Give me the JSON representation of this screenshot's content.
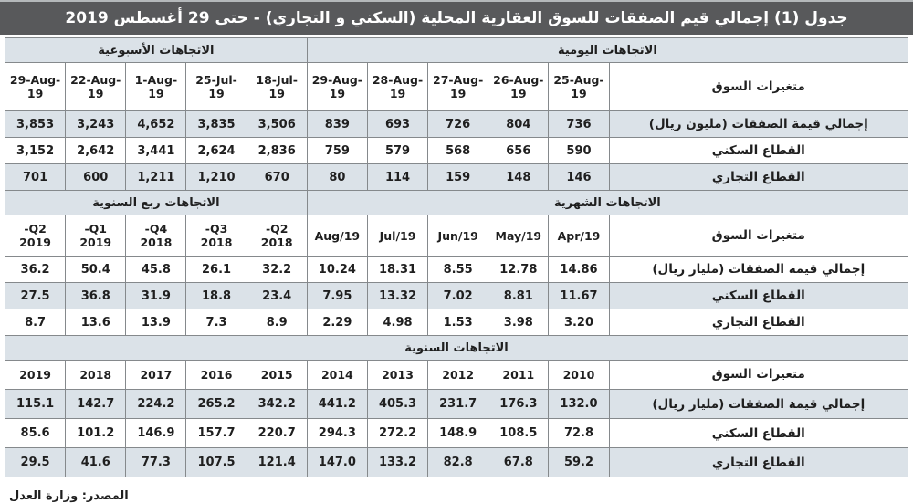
{
  "page": {
    "title": "جدول (1) إجمالي قيم الصفقات للسوق العقارية المحلية (السكني و التجاري) - حتى 29 أغسطس 2019",
    "source_note": "المصدر: وزارة العدل"
  },
  "colors": {
    "title_bar_bg": "#58595b",
    "title_text": "#ffffff",
    "band_bg": "#dbe2e8",
    "shaded_row_bg": "#dbe2e8",
    "row_bg": "#ffffff",
    "border": "#85898c",
    "text": "#1f1f1f"
  },
  "table": {
    "variables_label": "متغيرات السوق",
    "sections": [
      {
        "group_headers": [
          {
            "label": "الاتجاهات الأسبوعية",
            "span": 5
          },
          {
            "label": "الاتجاهات اليومية",
            "span": 6
          }
        ],
        "column_headers": [
          "29-Aug-\n19",
          "22-Aug-\n19",
          "1-Aug-\n19",
          "25-Jul-\n19",
          "18-Jul-\n19",
          "29-Aug-\n19",
          "28-Aug-\n19",
          "27-Aug-\n19",
          "26-Aug-\n19",
          "25-Aug-\n19"
        ],
        "rows": [
          {
            "label": "إجمالي قيمة الصفقات (مليون ريال)",
            "shaded": true,
            "values": [
              "3,853",
              "3,243",
              "4,652",
              "3,835",
              "3,506",
              "839",
              "693",
              "726",
              "804",
              "736"
            ]
          },
          {
            "label": "القطاع السكني",
            "shaded": false,
            "values": [
              "3,152",
              "2,642",
              "3,441",
              "2,624",
              "2,836",
              "759",
              "579",
              "568",
              "656",
              "590"
            ]
          },
          {
            "label": "القطاع التجاري",
            "shaded": true,
            "values": [
              "701",
              "600",
              "1,211",
              "1,210",
              "670",
              "80",
              "114",
              "159",
              "148",
              "146"
            ]
          }
        ]
      },
      {
        "group_headers": [
          {
            "label": "الاتجاهات ربع السنوية",
            "span": 5
          },
          {
            "label": "الاتجاهات الشهرية",
            "span": 6
          }
        ],
        "column_headers": [
          "-Q2\n2019",
          "-Q1\n2019",
          "-Q4\n2018",
          "-Q3\n2018",
          "-Q2\n2018",
          "Aug/19",
          "Jul/19",
          "Jun/19",
          "May/19",
          "Apr/19"
        ],
        "rows": [
          {
            "label": "إجمالي قيمة الصفقات (مليار ريال)",
            "shaded": false,
            "values": [
              "36.2",
              "50.4",
              "45.8",
              "26.1",
              "32.2",
              "10.24",
              "18.31",
              "8.55",
              "12.78",
              "14.86"
            ]
          },
          {
            "label": "القطاع السكني",
            "shaded": true,
            "values": [
              "27.5",
              "36.8",
              "31.9",
              "18.8",
              "23.4",
              "7.95",
              "13.32",
              "7.02",
              "8.81",
              "11.67"
            ]
          },
          {
            "label": "القطاع التجاري",
            "shaded": false,
            "values": [
              "8.7",
              "13.6",
              "13.9",
              "7.3",
              "8.9",
              "2.29",
              "4.98",
              "1.53",
              "3.98",
              "3.20"
            ]
          }
        ]
      },
      {
        "group_headers": [
          {
            "label": "الاتجاهات السنوية",
            "span": 11
          }
        ],
        "column_headers": [
          "2019",
          "2018",
          "2017",
          "2016",
          "2015",
          "2014",
          "2013",
          "2012",
          "2011",
          "2010"
        ],
        "rows": [
          {
            "label": "إجمالي قيمة الصفقات (مليار ريال)",
            "shaded": true,
            "values": [
              "115.1",
              "142.7",
              "224.2",
              "265.2",
              "342.2",
              "441.2",
              "405.3",
              "231.7",
              "176.3",
              "132.0"
            ]
          },
          {
            "label": "القطاع السكني",
            "shaded": false,
            "values": [
              "85.6",
              "101.2",
              "146.9",
              "157.7",
              "220.7",
              "294.3",
              "272.2",
              "148.9",
              "108.5",
              "72.8"
            ]
          },
          {
            "label": "القطاع التجاري",
            "shaded": true,
            "values": [
              "29.5",
              "41.6",
              "77.3",
              "107.5",
              "121.4",
              "147.0",
              "133.2",
              "82.8",
              "67.8",
              "59.2"
            ]
          }
        ]
      }
    ]
  }
}
